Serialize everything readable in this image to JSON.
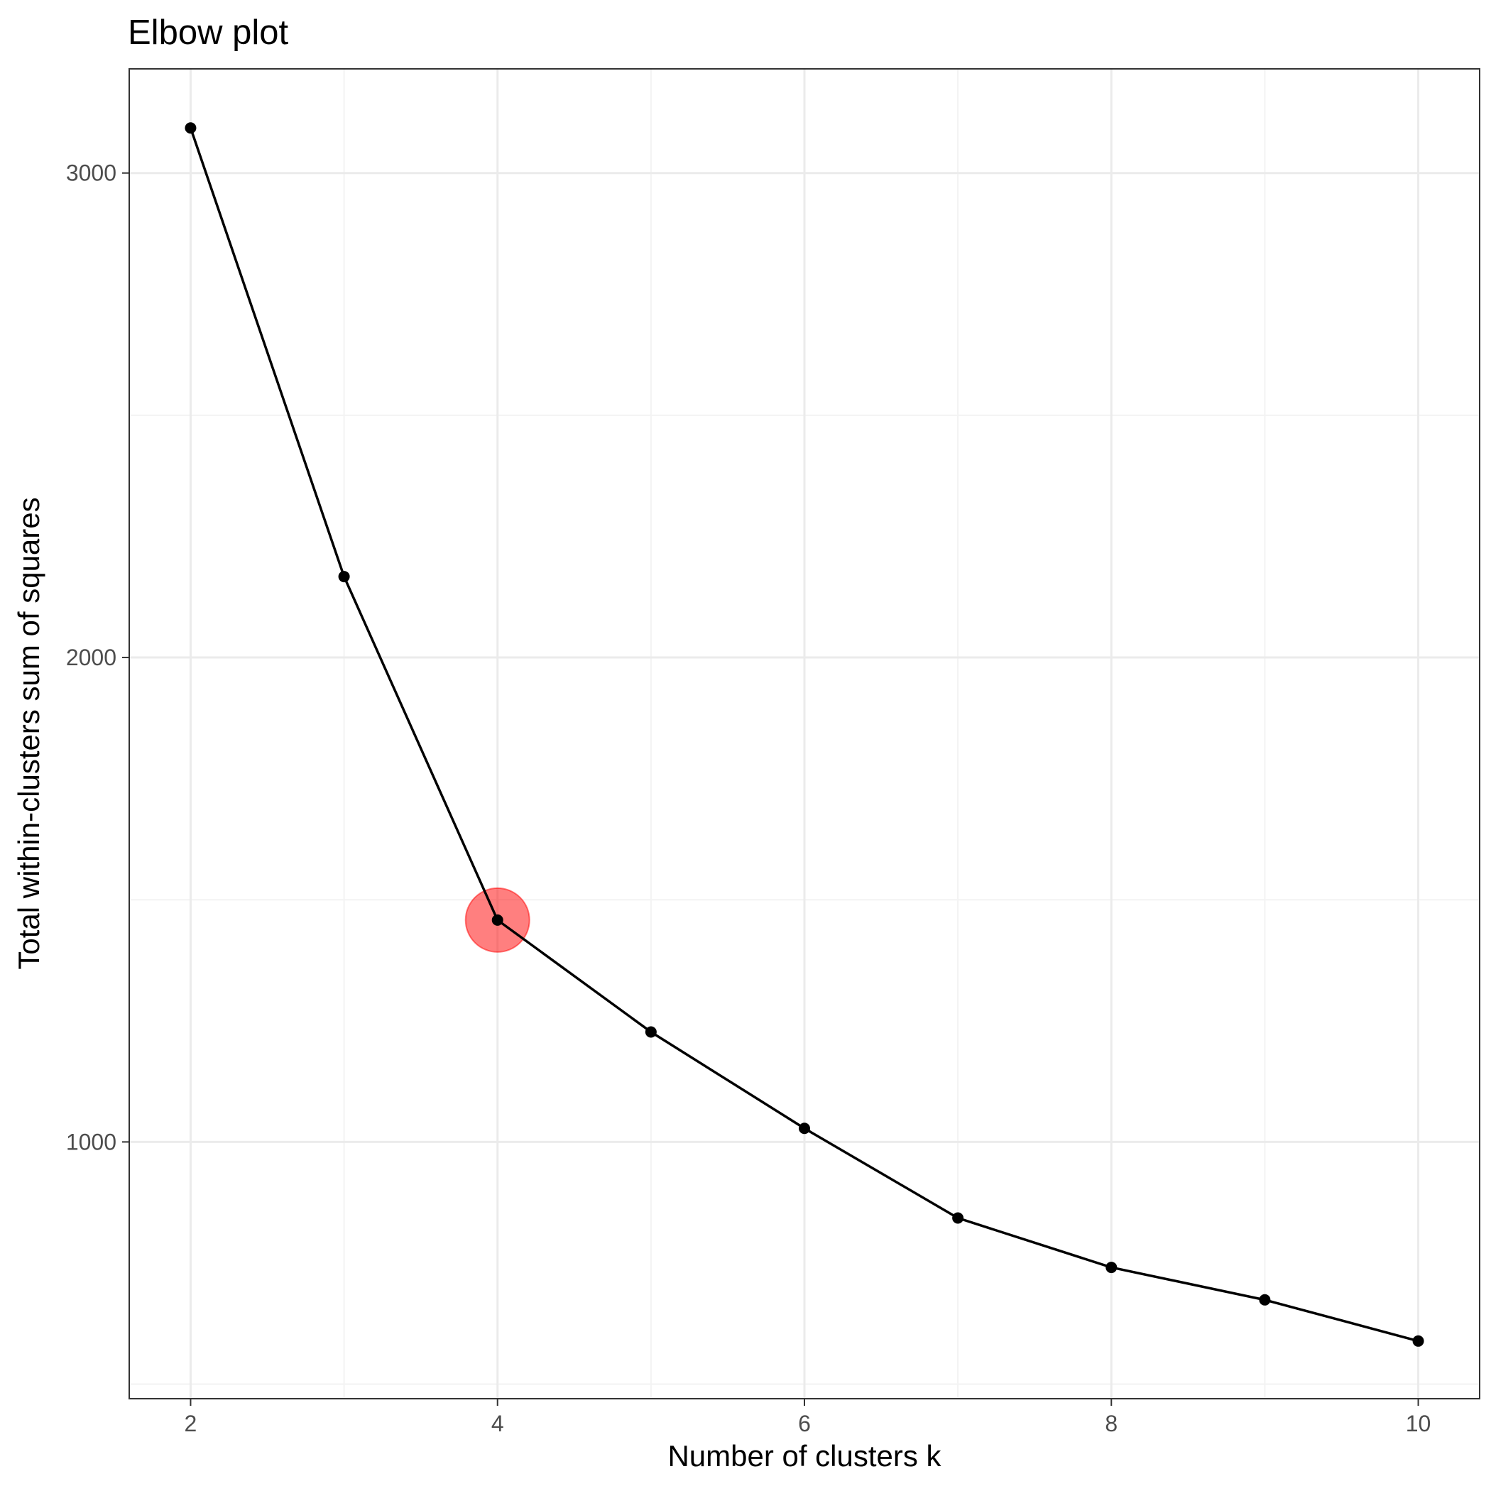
{
  "chart_data": {
    "type": "line",
    "title": "Elbow plot",
    "xlabel": "Number of clusters k",
    "ylabel": "Total within-clusters sum of squares",
    "x": [
      2,
      3,
      4,
      5,
      6,
      7,
      8,
      9,
      10
    ],
    "series": [
      {
        "values": [
          3093,
          2167,
          1458,
          1227,
          1028,
          843,
          741,
          674,
          589
        ],
        "color": "#000000"
      }
    ],
    "highlight": {
      "x": 4,
      "y": 1458,
      "color": "#ff0000"
    },
    "xlim": [
      1.6,
      10.4
    ],
    "ylim": [
      470,
      3215
    ],
    "x_ticks": [
      2,
      4,
      6,
      8,
      10
    ],
    "x_tick_labels": [
      "2",
      "4",
      "6",
      "8",
      "10"
    ],
    "x_minor_ticks": [
      3,
      5,
      7,
      9
    ],
    "y_ticks": [
      1000,
      2000,
      3000
    ],
    "y_tick_labels": [
      "1000",
      "2000",
      "3000"
    ],
    "y_minor_ticks": [
      500,
      1500,
      2500
    ],
    "grid": true,
    "legend": "none",
    "colors": {
      "grid_major": "#ebebeb",
      "grid_minor": "#f3f3f3",
      "panel_border": "#333333",
      "tick_label": "#4d4d4d"
    }
  }
}
